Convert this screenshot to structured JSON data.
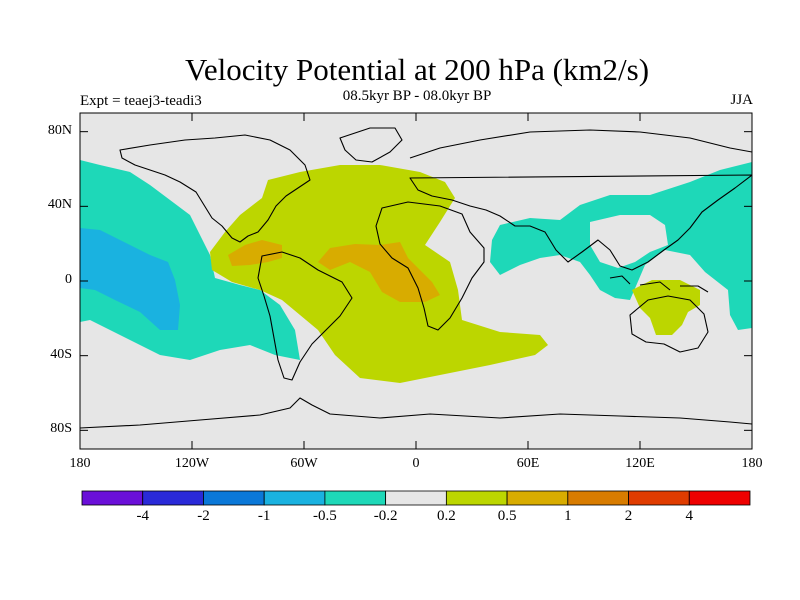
{
  "header": {
    "title": "Velocity Potential at 200 hPa (km2/s)",
    "subtitle": "08.5kyr BP - 08.0kyr BP",
    "experiment": "Expt = teaej3-teadi3",
    "season": "JJA"
  },
  "axes": {
    "lat_ticks": [
      {
        "value": 80,
        "label": "80N"
      },
      {
        "value": 40,
        "label": "40N"
      },
      {
        "value": 0,
        "label": "0"
      },
      {
        "value": -40,
        "label": "40S"
      },
      {
        "value": -80,
        "label": "80S"
      }
    ],
    "lon_ticks": [
      {
        "value": -180,
        "label": "180"
      },
      {
        "value": -120,
        "label": "120W"
      },
      {
        "value": -60,
        "label": "60W"
      },
      {
        "value": 0,
        "label": "0"
      },
      {
        "value": 60,
        "label": "60E"
      },
      {
        "value": 120,
        "label": "120E"
      },
      {
        "value": 180,
        "label": "180"
      }
    ],
    "lon_range": [
      -180,
      180
    ],
    "lat_range": [
      -90,
      90
    ]
  },
  "colorbar": {
    "colors": [
      "#6a0fd8",
      "#2a2ad8",
      "#0a78d8",
      "#1ab2e0",
      "#1ed8b8",
      "#e6e6e6",
      "#bcd600",
      "#d8ac00",
      "#d87c00",
      "#e03c00",
      "#ee0000"
    ],
    "labels": [
      "-4",
      "-2",
      "-1",
      "-0.5",
      "-0.2",
      "0.2",
      "0.5",
      "1",
      "2",
      "4"
    ]
  },
  "colors": {
    "neutral": "#e6e6e6",
    "cyan": "#1ed8b8",
    "blue": "#1ab2e0",
    "yellowgreen": "#bcd600",
    "orange": "#d8ac00"
  }
}
